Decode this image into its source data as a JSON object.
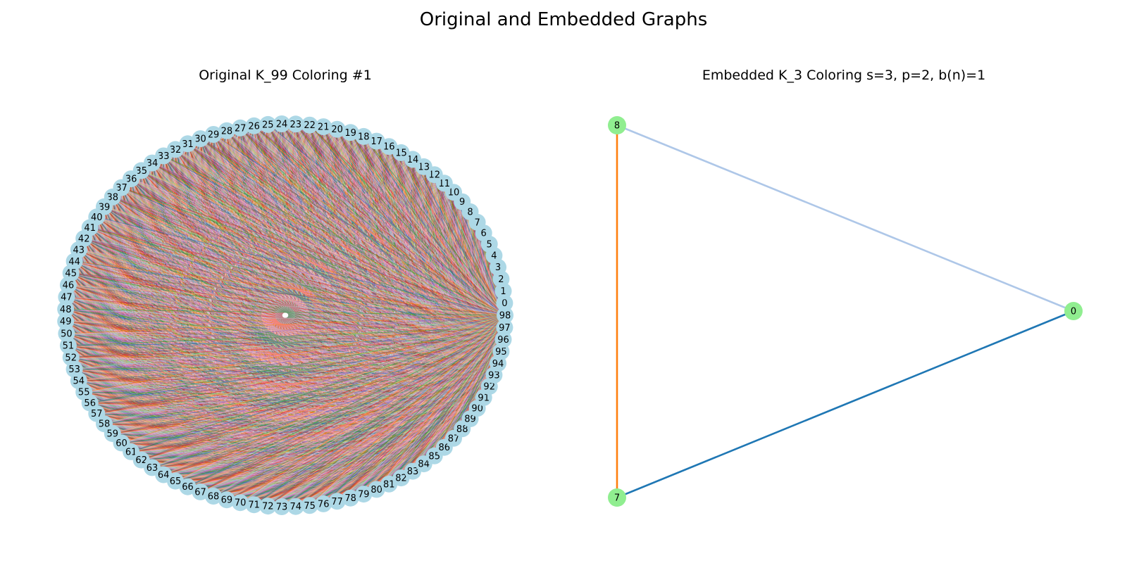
{
  "figure": {
    "title": "Original and Embedded Graphs"
  },
  "left_graph": {
    "title": "Original K_99 Coloring #1",
    "n": 99,
    "node_labels": [
      "0",
      "1",
      "2",
      "3",
      "4",
      "5",
      "6",
      "7",
      "8",
      "9",
      "10",
      "11",
      "12",
      "13",
      "14",
      "15",
      "16",
      "17",
      "18",
      "19",
      "20",
      "21",
      "22",
      "23",
      "24",
      "25",
      "26",
      "27",
      "28",
      "29",
      "30",
      "31",
      "32",
      "33",
      "34",
      "35",
      "36",
      "37",
      "38",
      "39",
      "40",
      "41",
      "42",
      "43",
      "44",
      "45",
      "46",
      "47",
      "48",
      "49",
      "50",
      "51",
      "52",
      "53",
      "54",
      "55",
      "56",
      "57",
      "58",
      "59",
      "60",
      "61",
      "62",
      "63",
      "64",
      "65",
      "66",
      "67",
      "68",
      "69",
      "70",
      "71",
      "72",
      "73",
      "74",
      "75",
      "76",
      "77",
      "78",
      "79",
      "80",
      "81",
      "82",
      "83",
      "84",
      "85",
      "86",
      "87",
      "88",
      "89",
      "90",
      "91",
      "92",
      "93",
      "94",
      "95",
      "96",
      "97",
      "98"
    ],
    "node_color": "#add8e6",
    "edge_palette": [
      "#1f77b4",
      "#aec7e8",
      "#ff7f0e",
      "#ffbb78",
      "#2ca02c",
      "#98df8a",
      "#d62728",
      "#ff9896",
      "#9467bd",
      "#c5b0d5",
      "#8c564b",
      "#c49c94",
      "#e377c2",
      "#f7b6d2",
      "#7f7f7f"
    ]
  },
  "right_graph": {
    "title": "Embedded K_3 Coloring s=3, p=2, b(n)=1",
    "node_color": "#90ee90",
    "nodes": [
      {
        "id": "8",
        "label": "8"
      },
      {
        "id": "7",
        "label": "7"
      },
      {
        "id": "0",
        "label": "0"
      }
    ],
    "edges": [
      {
        "source": "8",
        "target": "7",
        "color": "#ff7f0e"
      },
      {
        "source": "8",
        "target": "0",
        "color": "#aec7e8"
      },
      {
        "source": "7",
        "target": "0",
        "color": "#1f77b4"
      }
    ]
  }
}
